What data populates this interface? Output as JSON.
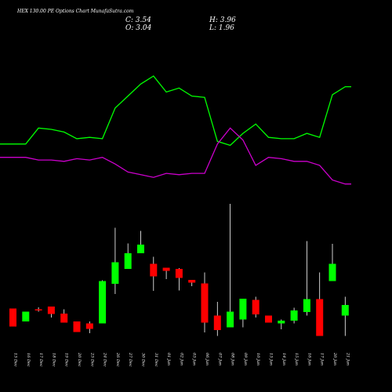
{
  "title": "HEX 130.00 PE Options Chart MunafaSutra.com",
  "ohlc": {
    "close": "C: 3.54",
    "high": "H: 3.96",
    "open": "O: 3.04",
    "low": "L: 1.96"
  },
  "colors": {
    "background": "#000000",
    "up": "#00ff00",
    "down": "#ff0000",
    "wick": "#ffffff",
    "line_upper": "#00ff00",
    "line_lower": "#cc00cc"
  },
  "chart_data": [
    {
      "type": "line",
      "categories": [
        "13 Dec",
        "16 Dec",
        "17 Dec",
        "18 Dec",
        "19 Dec",
        "20 Dec",
        "23 Dec",
        "24 Dec",
        "26 Dec",
        "27 Dec",
        "30 Dec",
        "31 Dec",
        "01 Jan",
        "02 Jan",
        "03 Jan",
        "06 Jan",
        "07 Jan",
        "08 Jan",
        "09 Jan",
        "10 Jan",
        "13 Jan",
        "14 Jan",
        "15 Jan",
        "16 Jan",
        "17 Jan",
        "20 Jan",
        "21 Jan"
      ],
      "series": [
        {
          "color": "#00ff00",
          "values": [
            9.9,
            9.9,
            11.1,
            11.0,
            10.8,
            10.3,
            10.4,
            10.3,
            12.6,
            13.5,
            14.4,
            15.0,
            13.8,
            14.1,
            13.5,
            13.4,
            10.1,
            9.8,
            10.7,
            11.4,
            10.4,
            10.3,
            10.3,
            10.7,
            10.4,
            13.6,
            14.2
          ]
        },
        {
          "color": "#cc00cc",
          "values": [
            8.9,
            8.9,
            8.7,
            8.7,
            8.6,
            8.8,
            8.7,
            8.9,
            8.4,
            7.8,
            7.6,
            7.4,
            7.7,
            7.6,
            7.7,
            7.7,
            9.9,
            11.1,
            10.2,
            8.3,
            8.9,
            8.8,
            8.6,
            8.6,
            8.3,
            7.2,
            6.9
          ]
        }
      ]
    },
    {
      "type": "candlestick",
      "categories": [
        "13 Dec",
        "16 Dec",
        "17 Dec",
        "18 Dec",
        "19 Dec",
        "20 Dec",
        "23 Dec",
        "24 Dec",
        "26 Dec",
        "27 Dec",
        "30 Dec",
        "31 Dec",
        "01 Jan",
        "02 Jan",
        "03 Jan",
        "06 Jan",
        "07 Jan",
        "08 Jan",
        "09 Jan",
        "10 Jan",
        "13 Jan",
        "14 Jan",
        "15 Jan",
        "16 Jan",
        "17 Jan",
        "20 Jan",
        "21 Jan"
      ],
      "open": [
        3.36,
        2.7,
        3.32,
        3.46,
        3.1,
        2.7,
        2.6,
        2.6,
        4.62,
        5.38,
        6.18,
        5.64,
        5.44,
        5.38,
        4.82,
        4.64,
        3.0,
        2.4,
        2.8,
        3.8,
        3.0,
        2.6,
        2.74,
        3.18,
        3.84,
        4.76,
        3.0
      ],
      "close": [
        2.44,
        3.2,
        3.26,
        3.08,
        2.64,
        2.16,
        2.32,
        4.76,
        5.72,
        6.18,
        6.62,
        5.0,
        5.28,
        4.92,
        4.68,
        2.64,
        2.26,
        3.2,
        3.86,
        3.06,
        2.64,
        2.74,
        3.26,
        3.84,
        1.96,
        5.64,
        3.54
      ],
      "high": [
        3.36,
        3.2,
        3.42,
        3.46,
        3.32,
        2.7,
        2.7,
        4.8,
        7.48,
        6.68,
        7.32,
        6.0,
        5.44,
        5.42,
        4.82,
        5.2,
        3.7,
        8.7,
        3.86,
        3.96,
        3.0,
        2.8,
        3.4,
        6.8,
        5.2,
        6.66,
        3.96
      ],
      "low": [
        2.44,
        2.7,
        3.2,
        2.9,
        2.64,
        2.16,
        2.1,
        2.6,
        4.1,
        5.38,
        6.18,
        4.26,
        4.86,
        4.28,
        4.5,
        2.14,
        1.96,
        2.4,
        2.4,
        2.9,
        2.7,
        2.3,
        2.6,
        3.0,
        1.96,
        4.76,
        1.96
      ]
    }
  ]
}
